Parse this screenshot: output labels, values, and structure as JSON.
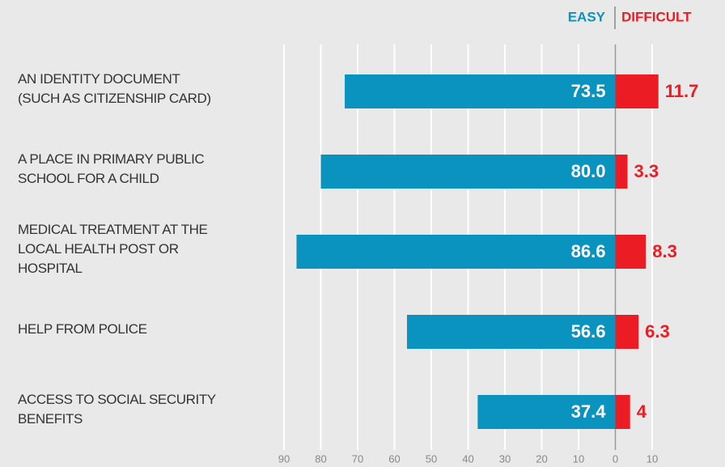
{
  "chart_data": {
    "type": "diverging-bar",
    "legend": [
      "EASY",
      "DIFFICULT"
    ],
    "categories": [
      "AN IDENTITY DOCUMENT\n(SUCH AS CITIZENSHIP CARD)",
      "A PLACE IN PRIMARY PUBLIC\nSCHOOL FOR A CHILD",
      "MEDICAL TREATMENT AT THE\nLOCAL HEALTH POST OR\nHOSPITAL",
      "HELP FROM POLICE",
      "ACCESS TO SOCIAL SECURITY\nBENEFITS"
    ],
    "series": [
      {
        "name": "EASY",
        "color": "#0a93bf",
        "values": [
          73.5,
          80.0,
          86.6,
          56.6,
          37.4
        ],
        "value_labels": [
          "73.5",
          "80.0",
          "86.6",
          "56.6",
          "37.4"
        ]
      },
      {
        "name": "DIFFICULT",
        "color": "#ec1c24",
        "values": [
          11.7,
          3.3,
          8.3,
          6.3,
          4.0
        ]
      }
    ],
    "xlim": [
      -90,
      10
    ],
    "xticks": [
      {
        "value": -90,
        "label": "90"
      },
      {
        "value": -80,
        "label": "80"
      },
      {
        "value": -70,
        "label": "70"
      },
      {
        "value": -60,
        "label": "60"
      },
      {
        "value": -50,
        "label": "50"
      },
      {
        "value": -40,
        "label": "40"
      },
      {
        "value": -30,
        "label": "30"
      },
      {
        "value": -20,
        "label": "20"
      },
      {
        "value": -10,
        "label": "10"
      },
      0,
      10
    ],
    "grid": true
  }
}
